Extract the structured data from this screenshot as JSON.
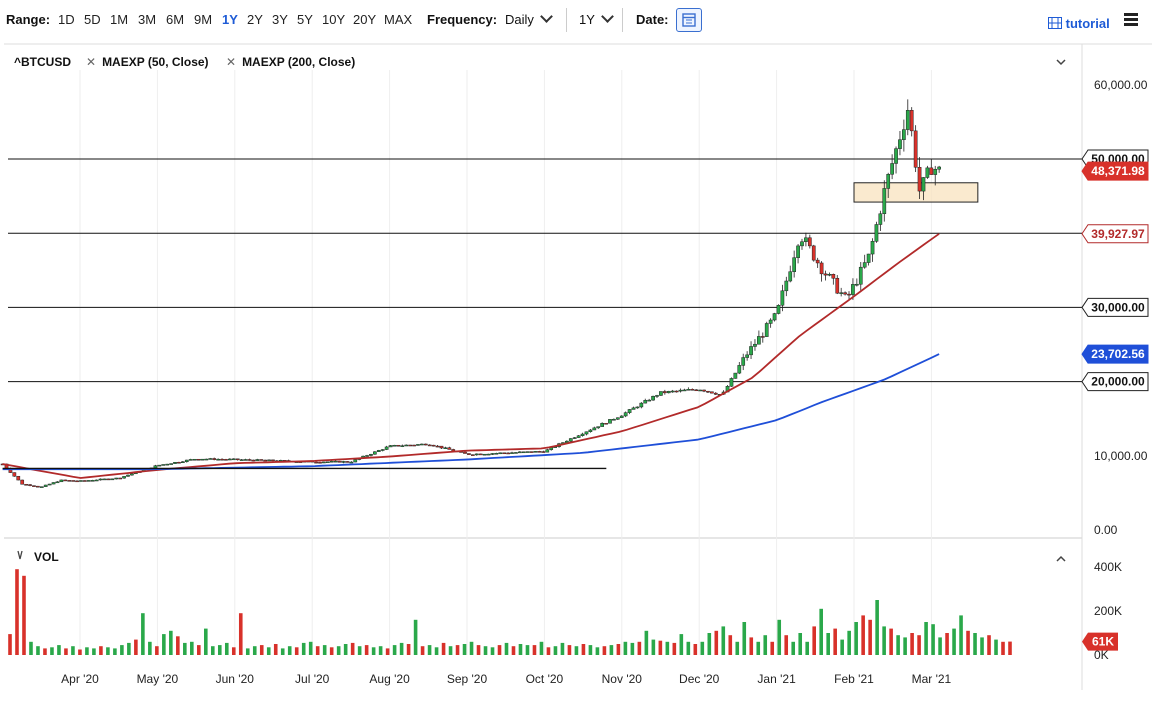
{
  "toolbar": {
    "range_label": "Range:",
    "ranges": [
      "1D",
      "5D",
      "1M",
      "3M",
      "6M",
      "9M",
      "1Y",
      "2Y",
      "3Y",
      "5Y",
      "10Y",
      "20Y",
      "MAX"
    ],
    "active_range": "1Y",
    "frequency_label": "Frequency:",
    "frequency_value": "Daily",
    "period_value": "1Y",
    "date_label": "Date:",
    "tutorial_label": "tutorial"
  },
  "legend": {
    "symbol": "^BTCUSD",
    "study1": "MAEXP (50, Close)",
    "study2": "MAEXP (200, Close)",
    "volume": "VOL"
  },
  "colors": {
    "up": "#2aa84a",
    "down": "#d8312a",
    "ema50": "#b22a2a",
    "ema200": "#1f4fd8",
    "accent": "#1e5bd6"
  },
  "chart_data": [
    {
      "type": "candlestick",
      "title": "^BTCUSD",
      "x_labels": [
        "Apr '20",
        "May '20",
        "Jun '20",
        "Jul '20",
        "Aug '20",
        "Sep '20",
        "Oct '20",
        "Nov '20",
        "Dec '20",
        "Jan '21",
        "Feb '21",
        "Mar '21"
      ],
      "ylim": [
        0,
        62000
      ],
      "y_ticks": [
        "60,000.00",
        "50,000.00",
        "10,000.00",
        "0.00"
      ],
      "grid": "vertical",
      "price_tags": [
        {
          "label": "50,000.00",
          "value": 50000,
          "style": "level"
        },
        {
          "label": "48,371.98",
          "value": 48371.98,
          "style": "last"
        },
        {
          "label": "39,927.97",
          "value": 39927.97,
          "style": "ema50"
        },
        {
          "label": "30,000.00",
          "value": 30000,
          "style": "level"
        },
        {
          "label": "23,702.56",
          "value": 23702.56,
          "style": "ema200"
        },
        {
          "label": "20,000.00",
          "value": 20000,
          "style": "level"
        }
      ],
      "horizontal_lines": [
        50000,
        40000,
        30000,
        20000
      ],
      "trend_line": {
        "from_month": "Mar '20",
        "to_month": "Oct '20",
        "value": 8300
      },
      "zone": {
        "from_month": "Feb '21",
        "to_month": "Mar '21",
        "low": 44200,
        "high": 46800
      },
      "close_series": [
        {
          "m": 0.0,
          "v": 8900
        },
        {
          "m": 0.25,
          "v": 6200
        },
        {
          "m": 0.5,
          "v": 5800
        },
        {
          "m": 0.75,
          "v": 6700
        },
        {
          "m": 1.0,
          "v": 6600
        },
        {
          "m": 1.5,
          "v": 7000
        },
        {
          "m": 2.0,
          "v": 8700
        },
        {
          "m": 2.5,
          "v": 9600
        },
        {
          "m": 3.0,
          "v": 9500
        },
        {
          "m": 4.0,
          "v": 9200
        },
        {
          "m": 4.5,
          "v": 9200
        },
        {
          "m": 5.0,
          "v": 11300
        },
        {
          "m": 5.5,
          "v": 11600
        },
        {
          "m": 6.0,
          "v": 10200
        },
        {
          "m": 7.0,
          "v": 10600
        },
        {
          "m": 7.5,
          "v": 13100
        },
        {
          "m": 8.0,
          "v": 15500
        },
        {
          "m": 8.5,
          "v": 18500
        },
        {
          "m": 9.0,
          "v": 19000
        },
        {
          "m": 9.3,
          "v": 18200
        },
        {
          "m": 9.6,
          "v": 23500
        },
        {
          "m": 10.0,
          "v": 29000
        },
        {
          "m": 10.3,
          "v": 40000
        },
        {
          "m": 10.6,
          "v": 35000
        },
        {
          "m": 10.9,
          "v": 31000
        },
        {
          "m": 11.2,
          "v": 37000
        },
        {
          "m": 11.4,
          "v": 46000
        },
        {
          "m": 11.7,
          "v": 57000
        },
        {
          "m": 11.85,
          "v": 45500
        },
        {
          "m": 12.0,
          "v": 49000
        },
        {
          "m": 12.1,
          "v": 48371.98
        }
      ],
      "series": [
        {
          "name": "MAEXP (50, Close)",
          "points": [
            {
              "m": 0.0,
              "v": 8900
            },
            {
              "m": 1.0,
              "v": 7000
            },
            {
              "m": 2.0,
              "v": 8100
            },
            {
              "m": 3.0,
              "v": 9000
            },
            {
              "m": 4.0,
              "v": 9300
            },
            {
              "m": 5.0,
              "v": 9900
            },
            {
              "m": 6.0,
              "v": 10700
            },
            {
              "m": 7.0,
              "v": 11000
            },
            {
              "m": 8.0,
              "v": 13300
            },
            {
              "m": 9.0,
              "v": 16600
            },
            {
              "m": 9.7,
              "v": 20600
            },
            {
              "m": 10.3,
              "v": 26200
            },
            {
              "m": 11.0,
              "v": 31500
            },
            {
              "m": 11.6,
              "v": 36200
            },
            {
              "m": 12.1,
              "v": 39927.97
            }
          ]
        },
        {
          "name": "MAEXP (200, Close)",
          "points": [
            {
              "m": 0.0,
              "v": 8200
            },
            {
              "m": 2.0,
              "v": 8200
            },
            {
              "m": 4.0,
              "v": 8600
            },
            {
              "m": 6.0,
              "v": 9500
            },
            {
              "m": 7.5,
              "v": 10400
            },
            {
              "m": 9.0,
              "v": 12200
            },
            {
              "m": 10.0,
              "v": 14800
            },
            {
              "m": 10.6,
              "v": 17300
            },
            {
              "m": 11.4,
              "v": 20300
            },
            {
              "m": 12.1,
              "v": 23702.56
            }
          ]
        }
      ]
    },
    {
      "type": "bar",
      "title": "VOL",
      "ylim": [
        0,
        500000
      ],
      "y_ticks": [
        "400K",
        "200K",
        "0K"
      ],
      "last_value_label": "61K",
      "values_k": [
        95,
        390,
        360,
        60,
        40,
        30,
        35,
        45,
        30,
        40,
        25,
        35,
        30,
        40,
        35,
        30,
        45,
        55,
        70,
        190,
        60,
        40,
        95,
        110,
        85,
        55,
        60,
        45,
        120,
        40,
        45,
        55,
        35,
        190,
        30,
        40,
        45,
        35,
        50,
        30,
        40,
        35,
        55,
        60,
        40,
        45,
        35,
        40,
        50,
        55,
        40,
        45,
        35,
        40,
        30,
        45,
        55,
        50,
        160,
        40,
        45,
        35,
        55,
        40,
        45,
        50,
        60,
        45,
        40,
        35,
        45,
        55,
        40,
        50,
        45,
        45,
        60,
        35,
        40,
        55,
        45,
        40,
        50,
        45,
        35,
        40,
        45,
        50,
        60,
        55,
        60,
        110,
        70,
        65,
        60,
        55,
        95,
        60,
        50,
        60,
        100,
        110,
        130,
        90,
        60,
        150,
        80,
        60,
        90,
        60,
        160,
        90,
        60,
        100,
        60,
        130,
        210,
        100,
        120,
        70,
        110,
        150,
        180,
        160,
        250,
        130,
        120,
        90,
        80,
        100,
        90,
        150,
        140,
        80,
        100,
        120,
        180,
        110,
        100,
        80,
        90,
        70,
        60,
        61
      ],
      "down_mask": [
        1,
        1,
        1,
        0,
        0,
        1,
        0,
        0,
        1,
        0,
        1,
        0,
        0,
        1,
        0,
        0,
        0,
        0,
        1,
        0,
        0,
        1,
        0,
        0,
        1,
        0,
        0,
        1,
        0,
        0,
        0,
        0,
        1,
        1,
        0,
        0,
        1,
        0,
        1,
        0,
        0,
        1,
        0,
        0,
        1,
        0,
        1,
        0,
        0,
        1,
        0,
        1,
        0,
        0,
        1,
        0,
        0,
        1,
        0,
        1,
        0,
        0,
        1,
        0,
        1,
        0,
        0,
        1,
        0,
        0,
        1,
        0,
        1,
        0,
        0,
        1,
        0,
        1,
        0,
        0,
        1,
        0,
        1,
        0,
        0,
        1,
        0,
        1,
        0,
        0,
        1,
        0,
        0,
        1,
        0,
        1,
        0,
        0,
        1,
        0,
        0,
        1,
        0,
        1,
        0,
        0,
        1,
        0,
        0,
        1,
        0,
        1,
        0,
        0,
        0,
        1,
        0,
        0,
        1,
        0,
        0,
        0,
        1,
        1,
        0,
        0,
        1,
        0,
        0,
        1,
        1,
        0,
        0,
        0,
        1,
        0,
        0,
        1,
        0,
        0,
        1,
        0,
        1,
        1
      ]
    }
  ]
}
